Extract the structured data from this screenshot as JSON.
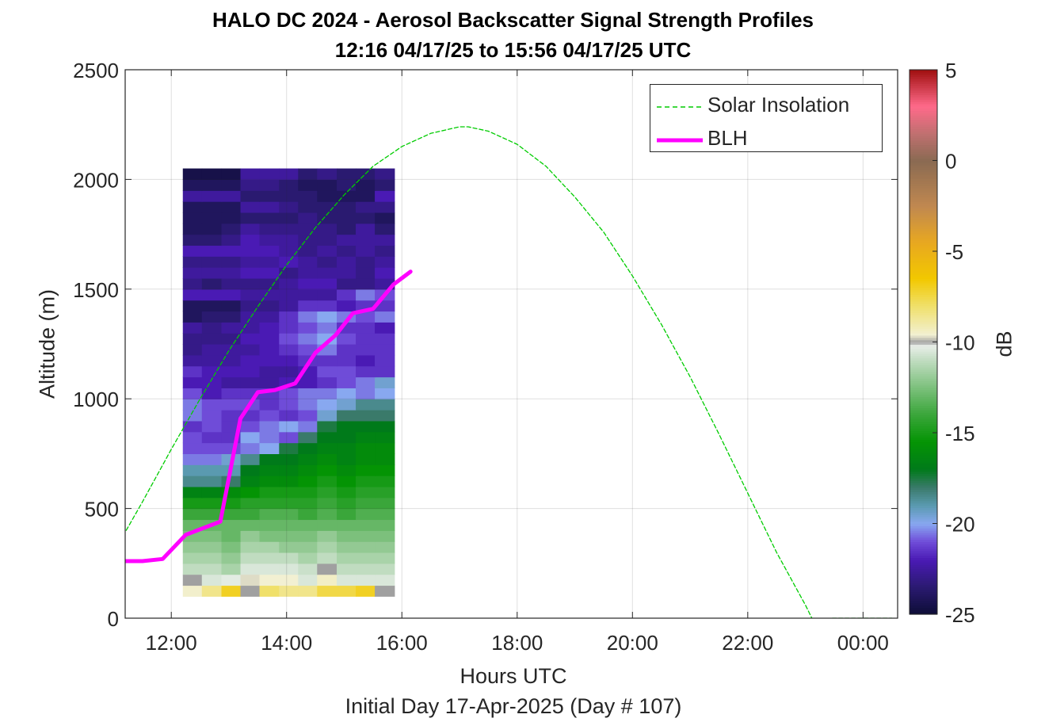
{
  "title": {
    "line1": "HALO DC 2024 - Aerosol Backscatter Signal Strength Profiles",
    "line2": "12:16 04/17/25 to 15:56 04/17/25  UTC"
  },
  "chart_data": {
    "type": "heatmap",
    "xlabel": "Hours UTC",
    "xsublabel": "Initial Day 17-Apr-2025 (Day # 107)",
    "ylabel": "Altitude (m)",
    "x_unit": "hours UTC (17-Apr-2025)",
    "xlim": [
      11.2,
      24.6
    ],
    "ylim": [
      0,
      2500
    ],
    "xticks": [
      12,
      14,
      16,
      18,
      20,
      22,
      24
    ],
    "xticklabels": [
      "12:00",
      "14:00",
      "16:00",
      "18:00",
      "20:00",
      "22:00",
      "00:00"
    ],
    "yticks": [
      0,
      500,
      1000,
      1500,
      2000,
      2500
    ],
    "yticklabels": [
      "0",
      "500",
      "1000",
      "1500",
      "2000",
      "2500"
    ],
    "grid": true,
    "colorbar": {
      "label": "dB",
      "min": -25,
      "max": 5,
      "ticks": [
        -25,
        -20,
        -15,
        -10,
        -5,
        0,
        5
      ],
      "ticklabels": [
        "-25",
        "-20",
        "-15",
        "-10",
        "-5",
        "0",
        "5"
      ],
      "stops": [
        [
          -25,
          "#0d0d36"
        ],
        [
          -23.5,
          "#2a1a70"
        ],
        [
          -22,
          "#4a1ab4"
        ],
        [
          -21,
          "#6f4cd8"
        ],
        [
          -20,
          "#88a8f0"
        ],
        [
          -19,
          "#5a9ab0"
        ],
        [
          -18,
          "#3a7a6a"
        ],
        [
          -17,
          "#007a1a"
        ],
        [
          -15.5,
          "#049404"
        ],
        [
          -14,
          "#3aa63a"
        ],
        [
          -12.5,
          "#7cc07c"
        ],
        [
          -11,
          "#c0dcc0"
        ],
        [
          -10.2,
          "#e8eee8"
        ],
        [
          -10,
          "#a0a0a0"
        ],
        [
          -9.6,
          "#f2f0d2"
        ],
        [
          -8,
          "#f0e06a"
        ],
        [
          -6.5,
          "#f2c800"
        ],
        [
          -4.5,
          "#e8a820"
        ],
        [
          -2.5,
          "#c08850"
        ],
        [
          0,
          "#8a6a52"
        ],
        [
          1.5,
          "#c07070"
        ],
        [
          3,
          "#ff6a8a"
        ],
        [
          5,
          "#a01010"
        ]
      ]
    },
    "heatmap": {
      "x_edges": [
        12.2,
        12.53,
        12.87,
        13.2,
        13.53,
        13.87,
        14.2,
        14.53,
        14.87,
        15.2,
        15.53,
        15.87
      ],
      "y_bottom": 100,
      "y_step": 50,
      "note_rows": "rows from 100 m upward, one per 50 m, values in dB",
      "rows": [
        [
          -9.5,
          -8.5,
          -7,
          -10,
          -8,
          -8.5,
          -8.5,
          -7.5,
          -7.5,
          -7,
          -10
        ],
        [
          -10,
          -10.5,
          -10.3,
          -9.7,
          -9.6,
          -9.6,
          -10.5,
          -9.4,
          -10.5,
          -10.5,
          -10.5
        ],
        [
          -11,
          -11,
          -11.5,
          -10.5,
          -10.5,
          -10.5,
          -10.8,
          -10,
          -11,
          -11,
          -11
        ],
        [
          -11.5,
          -11.5,
          -12,
          -11,
          -11,
          -11,
          -11.5,
          -11,
          -11.5,
          -11.5,
          -11.5
        ],
        [
          -12,
          -12,
          -12.5,
          -11.5,
          -11.5,
          -12,
          -12,
          -11.5,
          -12,
          -12,
          -12
        ],
        [
          -12.5,
          -12.5,
          -13,
          -12,
          -12.5,
          -12.5,
          -12.5,
          -12,
          -12.5,
          -12.5,
          -12.5
        ],
        [
          -13,
          -13,
          -13,
          -13,
          -13,
          -13,
          -13,
          -13,
          -13,
          -13,
          -13
        ],
        [
          -14,
          -14,
          -14,
          -14,
          -13.5,
          -13.5,
          -14,
          -13.5,
          -14,
          -13.5,
          -13.5
        ],
        [
          -15,
          -15,
          -15,
          -14.5,
          -14.5,
          -14.5,
          -14.5,
          -14,
          -14.5,
          -14,
          -14
        ],
        [
          -16.5,
          -16.5,
          -16,
          -15.5,
          -15,
          -15,
          -15,
          -14.5,
          -15,
          -14.5,
          -14.5
        ],
        [
          -18.5,
          -18.5,
          -18,
          -16.5,
          -16,
          -16,
          -15.5,
          -15,
          -15.5,
          -15,
          -15
        ],
        [
          -19,
          -19,
          -19,
          -17,
          -16.5,
          -16.5,
          -16,
          -15.5,
          -16,
          -15.5,
          -15.5
        ],
        [
          -20.5,
          -20.5,
          -19.5,
          -18.5,
          -17,
          -17,
          -16.5,
          -16,
          -16.5,
          -16,
          -16
        ],
        [
          -21,
          -21,
          -21,
          -20.5,
          -20,
          -17.5,
          -17,
          -16.5,
          -16.5,
          -16,
          -16
        ],
        [
          -21,
          -21.5,
          -21.5,
          -20,
          -20.5,
          -21,
          -18,
          -17,
          -17,
          -16.5,
          -16.5
        ],
        [
          -21.5,
          -21,
          -21.5,
          -21,
          -20.5,
          -20,
          -20.5,
          -17.5,
          -17,
          -17,
          -17
        ],
        [
          -20.5,
          -21,
          -21.5,
          -21.5,
          -21,
          -21.5,
          -21,
          -19.5,
          -18,
          -18,
          -18
        ],
        [
          -20.5,
          -21,
          -21,
          -21,
          -21.5,
          -21,
          -20.5,
          -20,
          -19.5,
          -18.5,
          -18.5
        ],
        [
          -21,
          -22,
          -21.5,
          -21.5,
          -21.5,
          -21,
          -20.5,
          -20.5,
          -20,
          -20.5,
          -20
        ],
        [
          -22,
          -22,
          -22.5,
          -22.5,
          -22.5,
          -22,
          -22,
          -21.5,
          -21,
          -20.5,
          -19.5
        ],
        [
          -21.5,
          -22,
          -22,
          -22,
          -22.5,
          -22.5,
          -22,
          -21,
          -21,
          -21.5,
          -21.5
        ],
        [
          -22.5,
          -22.5,
          -22.5,
          -22,
          -22,
          -22,
          -21.5,
          -21.5,
          -21.5,
          -22,
          -21.5
        ],
        [
          -23,
          -22.5,
          -22.5,
          -22.5,
          -22,
          -21.5,
          -21,
          -20.5,
          -21.5,
          -21.5,
          -21.5
        ],
        [
          -23,
          -23,
          -23,
          -22,
          -22,
          -21,
          -20.5,
          -20,
          -21,
          -21.5,
          -21.5
        ],
        [
          -22.5,
          -23,
          -22.5,
          -22.5,
          -22,
          -21.5,
          -21,
          -20.5,
          -21.5,
          -21.5,
          -22
        ],
        [
          -24,
          -23.5,
          -23.5,
          -22.5,
          -22.5,
          -21.5,
          -20.5,
          -20,
          -20.5,
          -21,
          -20.5
        ],
        [
          -24,
          -24,
          -24,
          -23,
          -23,
          -22.5,
          -21.5,
          -21.5,
          -22,
          -21.5,
          -21.5
        ],
        [
          -22,
          -22,
          -22,
          -22.5,
          -22.5,
          -22.5,
          -22.5,
          -22.5,
          -21.5,
          -20.5,
          -21
        ],
        [
          -23,
          -23.5,
          -23,
          -23,
          -23,
          -22.5,
          -22,
          -22,
          -23,
          -23,
          -22.5
        ],
        [
          -22.5,
          -22.5,
          -22.5,
          -22,
          -22,
          -23,
          -22.5,
          -22.5,
          -22.5,
          -23,
          -22
        ],
        [
          -23,
          -23,
          -23,
          -22.5,
          -22.5,
          -22,
          -22.5,
          -23,
          -22.5,
          -23,
          -22.5
        ],
        [
          -22,
          -22,
          -22,
          -22,
          -22,
          -22.5,
          -23,
          -22.5,
          -23,
          -22.5,
          -23
        ],
        [
          -23.5,
          -23.5,
          -23,
          -22,
          -22.5,
          -22.5,
          -23,
          -23,
          -22.5,
          -22.5,
          -22.5
        ],
        [
          -24,
          -24,
          -23.5,
          -22.5,
          -23,
          -23,
          -23,
          -23,
          -23.5,
          -22.5,
          -23.5
        ],
        [
          -24,
          -24,
          -24,
          -23.5,
          -23.5,
          -23.5,
          -23,
          -23.5,
          -23.5,
          -23.5,
          -24
        ],
        [
          -24,
          -24,
          -24,
          -22.5,
          -22.5,
          -23,
          -23.5,
          -23.5,
          -23.5,
          -23,
          -23
        ],
        [
          -22.5,
          -22.5,
          -22.5,
          -23.5,
          -23.5,
          -23.5,
          -23.5,
          -24,
          -24,
          -24,
          -22
        ],
        [
          -24,
          -24,
          -24,
          -23,
          -23,
          -23.5,
          -24,
          -24,
          -23.5,
          -24,
          -23.5
        ],
        [
          -24.5,
          -24.5,
          -24.5,
          -22.5,
          -22.5,
          -22.5,
          -23.5,
          -23,
          -23.5,
          -23.5,
          -23
        ]
      ]
    },
    "series": [
      {
        "name": "Solar Insolation",
        "style": "dashed",
        "color": "#00cc00",
        "x": [
          11.0,
          11.5,
          12.0,
          12.5,
          13.0,
          13.5,
          14.0,
          14.5,
          15.0,
          15.5,
          16.0,
          16.5,
          17.0,
          17.15,
          17.5,
          18.0,
          18.5,
          19.0,
          19.5,
          20.0,
          20.5,
          21.0,
          21.5,
          22.0,
          22.5,
          23.0,
          23.3,
          23.45,
          23.7,
          24.0,
          24.5
        ],
        "y": [
          300,
          530,
          770,
          1000,
          1220,
          1420,
          1610,
          1780,
          1930,
          2060,
          2150,
          2210,
          2240,
          2240,
          2220,
          2160,
          2060,
          1920,
          1760,
          1560,
          1340,
          1100,
          840,
          570,
          300,
          60,
          -100,
          0,
          0,
          0,
          0
        ]
      },
      {
        "name": "BLH",
        "style": "solid",
        "color": "#ff00ff",
        "x": [
          11.2,
          11.5,
          11.85,
          12.25,
          12.85,
          13.2,
          13.5,
          13.8,
          14.15,
          14.5,
          14.85,
          15.15,
          15.5,
          15.85,
          16.15
        ],
        "y": [
          260,
          260,
          270,
          380,
          440,
          910,
          1030,
          1040,
          1070,
          1210,
          1290,
          1390,
          1410,
          1520,
          1580
        ]
      }
    ]
  }
}
